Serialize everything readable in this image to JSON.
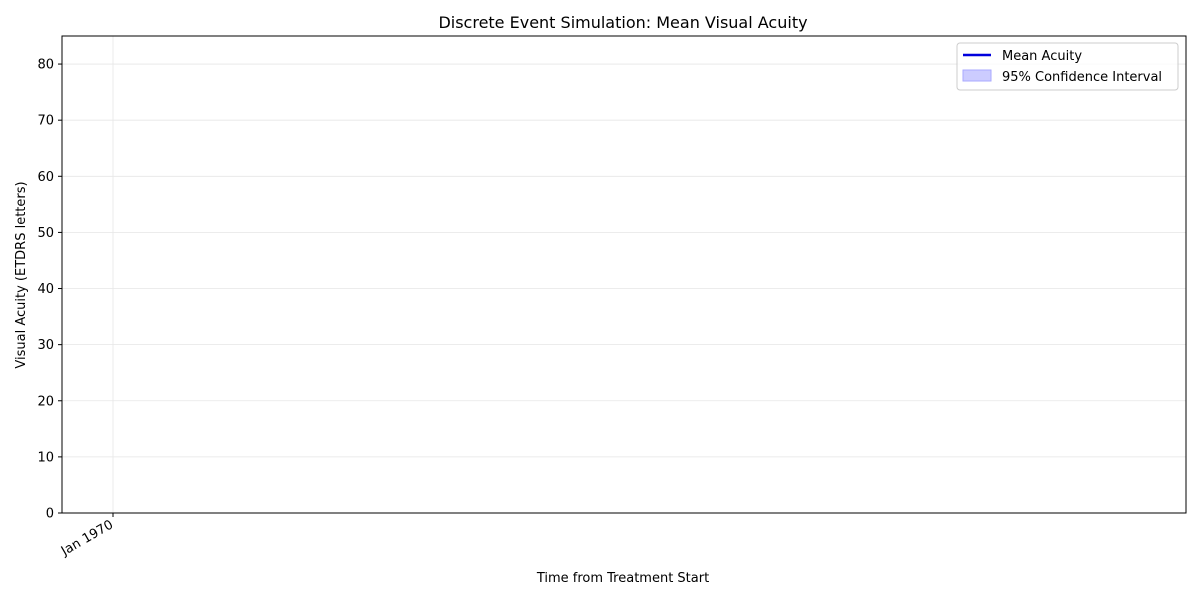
{
  "chart_data": {
    "type": "line",
    "title": "Discrete Event Simulation: Mean Visual Acuity",
    "xlabel": "Time from Treatment Start",
    "ylabel": "Visual Acuity (ETDRS letters)",
    "ylim": [
      0,
      85
    ],
    "yticks": [
      0,
      10,
      20,
      30,
      40,
      50,
      60,
      70,
      80
    ],
    "xticks": [
      "Jan 1970"
    ],
    "grid": true,
    "legend_position": "top-right",
    "series": [
      {
        "name": "Mean Acuity",
        "x": [],
        "values": [],
        "color": "#0000dd"
      },
      {
        "name": "95% Confidence Interval",
        "x": [],
        "lower": [],
        "upper": [],
        "color": "#ccccff"
      }
    ]
  }
}
